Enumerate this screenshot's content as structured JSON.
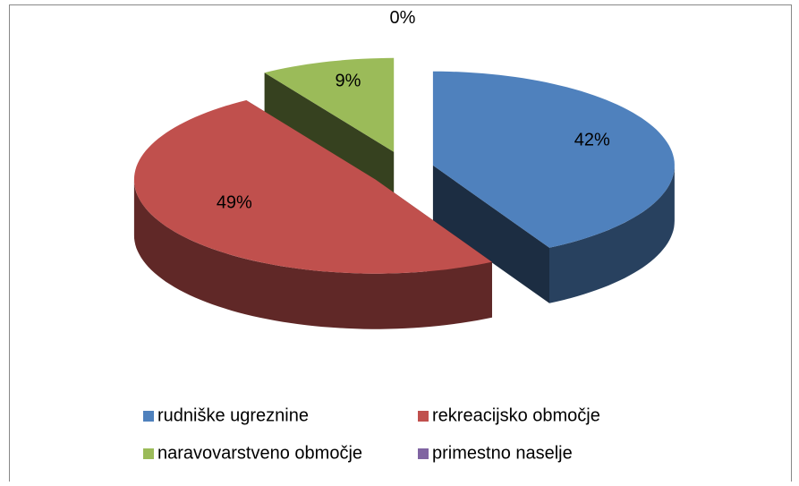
{
  "chart_data": {
    "type": "pie3d",
    "categories": [
      "rudniške ugreznine",
      "rekreacijsko območje",
      "naravovarstveno območje",
      "primestno naselje"
    ],
    "values": [
      42,
      49,
      9,
      0
    ],
    "value_labels": [
      "42%",
      "49%",
      "9%",
      "0%"
    ],
    "colors": [
      "#4f81bd",
      "#c0504d",
      "#9bbb59",
      "#8064a2"
    ],
    "legend": "bottom"
  }
}
